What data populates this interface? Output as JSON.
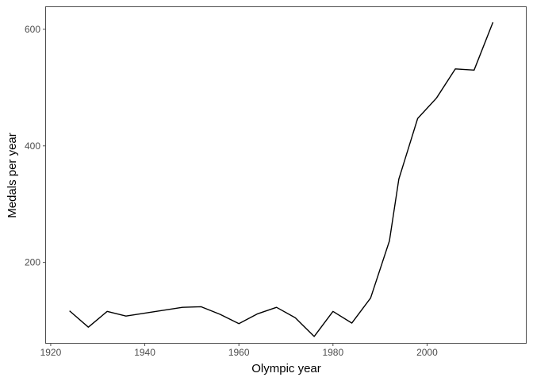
{
  "chart_data": {
    "type": "line",
    "title": "",
    "xlabel": "Olympic year",
    "ylabel": "Medals per year",
    "xlim": [
      1919,
      2021
    ],
    "ylim": [
      62,
      638
    ],
    "x_ticks": [
      1920,
      1940,
      1960,
      1980,
      2000
    ],
    "y_ticks": [
      200,
      400,
      600
    ],
    "grid": false,
    "legend": "none",
    "colors": {
      "line": "#000000",
      "panel_border": "#4d4d4d",
      "background": "#ffffff"
    },
    "series": [
      {
        "x": [
          1924,
          1928,
          1932,
          1936,
          1948,
          1952,
          1956,
          1960,
          1964,
          1968,
          1972,
          1976,
          1980,
          1984,
          1988,
          1992,
          1994,
          1998,
          2002,
          2006,
          2010,
          2014
        ],
        "y": [
          117,
          89,
          116,
          108,
          123,
          124,
          111,
          95,
          112,
          123,
          105,
          73,
          116,
          96,
          139,
          237,
          343,
          447,
          482,
          532,
          530,
          612
        ]
      }
    ]
  }
}
